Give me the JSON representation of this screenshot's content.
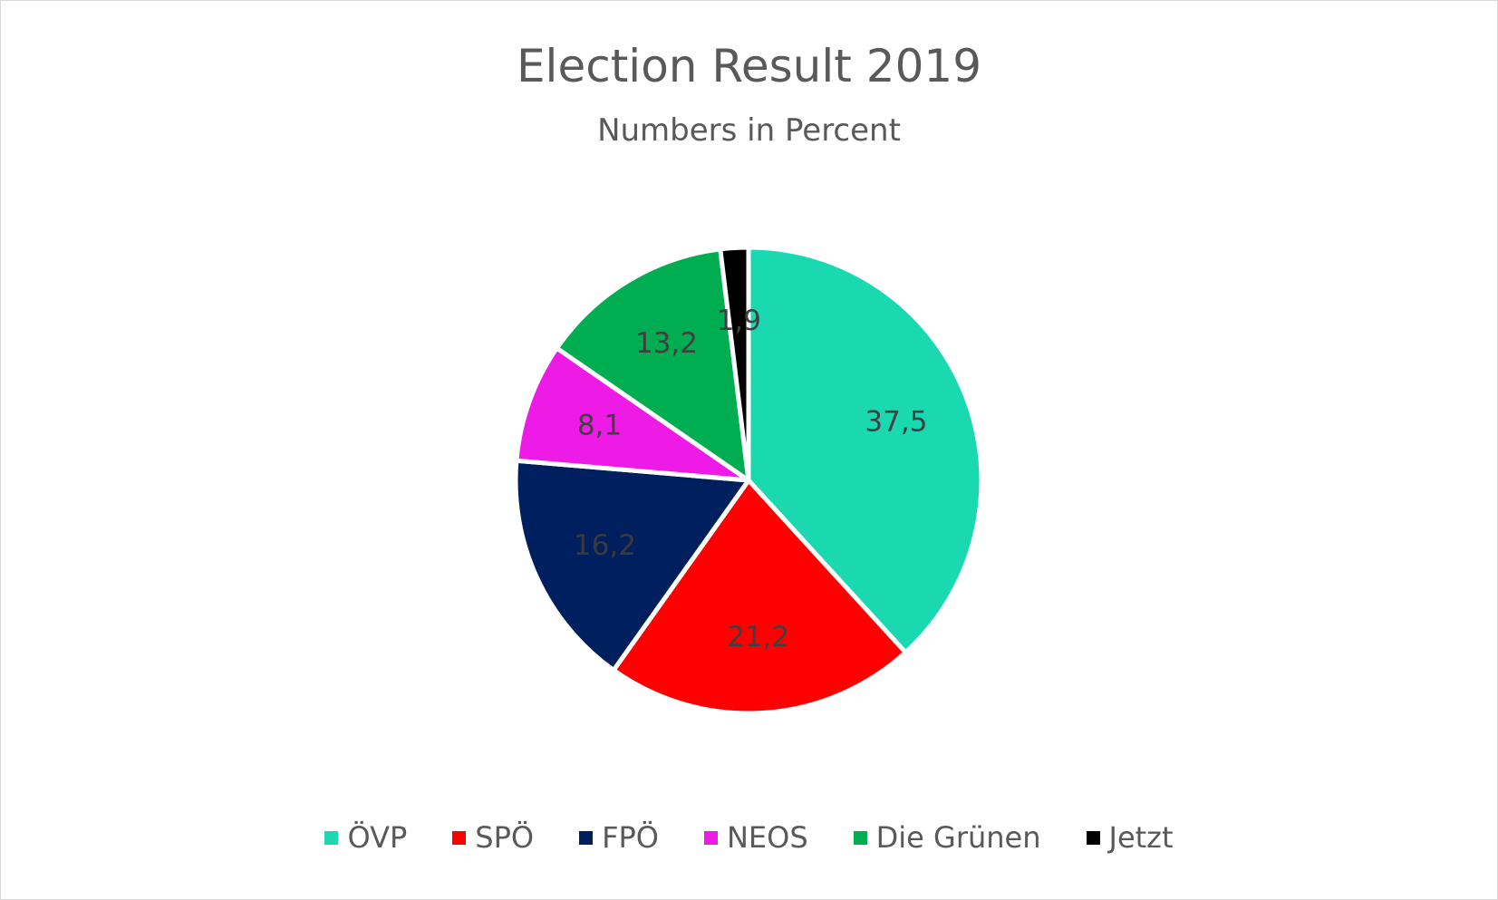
{
  "chart_data": {
    "type": "pie",
    "title": "Election Result 2019",
    "subtitle": "Numbers in Percent",
    "categories": [
      "ÖVP",
      "SPÖ",
      "FPÖ",
      "NEOS",
      "Die Grünen",
      "Jetzt"
    ],
    "values": [
      37.5,
      21.2,
      16.2,
      8.1,
      13.2,
      1.9
    ],
    "labels": [
      "37,5",
      "21,2",
      "16,2",
      "8,1",
      "13,2",
      "1,9"
    ],
    "colors": [
      "#1ad9b0",
      "#ff0000",
      "#001f5f",
      "#ee1ae6",
      "#00ad50",
      "#000000"
    ],
    "legend_position": "bottom"
  }
}
